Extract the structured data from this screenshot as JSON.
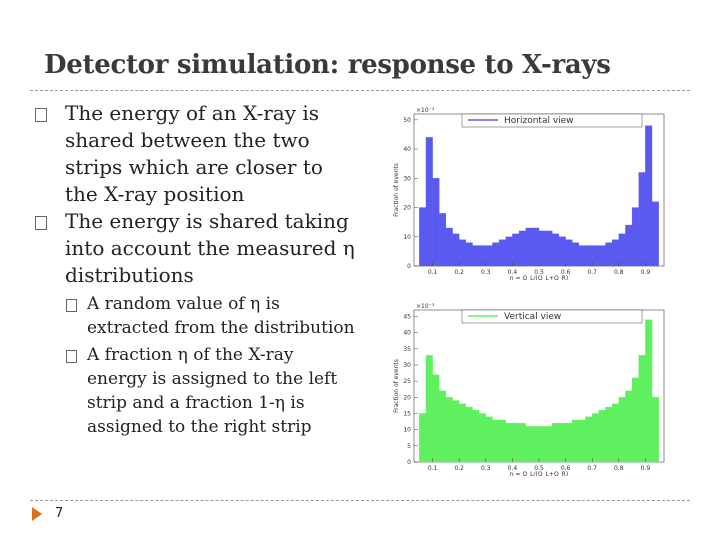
{
  "title": "Detector simulation: response to X-rays",
  "bullets": [
    {
      "text": "The energy of an X-ray is shared between the two strips which are closer to the X-ray position",
      "sub": []
    },
    {
      "text": "The energy is shared taking into account the measured η distributions",
      "sub": [
        "A random value of η is extracted from the distribution",
        "A fraction η of the X-ray energy is assigned to the left strip and a fraction 1-η is assigned to the right strip"
      ]
    }
  ],
  "slide_number": "7",
  "chart_data": [
    {
      "type": "histogram",
      "y_label": "Fraction of events",
      "y_exponent": "×10⁻³",
      "x_label": "η = Q_L/(Q_L+Q_R)",
      "bins": [
        0.05,
        0.075,
        0.1,
        0.125,
        0.15,
        0.175,
        0.2,
        0.225,
        0.25,
        0.275,
        0.3,
        0.325,
        0.35,
        0.375,
        0.4,
        0.425,
        0.45,
        0.475,
        0.5,
        0.525,
        0.55,
        0.575,
        0.6,
        0.625,
        0.65,
        0.675,
        0.7,
        0.725,
        0.75,
        0.775,
        0.8,
        0.825,
        0.85,
        0.875,
        0.9,
        0.925,
        0.95
      ],
      "series": [
        {
          "name": "Horizontal view",
          "color": "#5a5af0",
          "values": [
            20,
            44,
            30,
            18,
            13,
            11,
            9,
            8,
            7,
            7,
            7,
            8,
            9,
            10,
            11,
            12,
            13,
            13,
            12,
            12,
            11,
            10,
            9,
            8,
            7,
            7,
            7,
            7,
            8,
            9,
            11,
            14,
            20,
            32,
            48,
            22
          ]
        }
      ],
      "xlim": [
        0.03,
        0.97
      ],
      "xticks": [
        0.1,
        0.2,
        0.3,
        0.4,
        0.5,
        0.6,
        0.7,
        0.8,
        0.9
      ],
      "ylim": [
        0,
        52
      ],
      "yticks": [
        0,
        10,
        20,
        30,
        40,
        50
      ],
      "legend": "top"
    },
    {
      "type": "histogram",
      "y_label": "Fraction of events",
      "y_exponent": "×10⁻³",
      "x_label": "η = Q_L/(Q_L+Q_R)",
      "bins": [
        0.05,
        0.075,
        0.1,
        0.125,
        0.15,
        0.175,
        0.2,
        0.225,
        0.25,
        0.275,
        0.3,
        0.325,
        0.35,
        0.375,
        0.4,
        0.425,
        0.45,
        0.475,
        0.5,
        0.525,
        0.55,
        0.575,
        0.6,
        0.625,
        0.65,
        0.675,
        0.7,
        0.725,
        0.75,
        0.775,
        0.8,
        0.825,
        0.85,
        0.875,
        0.9,
        0.925,
        0.95
      ],
      "series": [
        {
          "name": "Vertical view",
          "color": "#5ef05e",
          "values": [
            15,
            33,
            27,
            22,
            20,
            19,
            18,
            17,
            16,
            15,
            14,
            13,
            13,
            12,
            12,
            12,
            11,
            11,
            11,
            11,
            12,
            12,
            12,
            13,
            13,
            14,
            15,
            16,
            17,
            18,
            20,
            22,
            26,
            33,
            44,
            20
          ]
        }
      ],
      "xlim": [
        0.03,
        0.97
      ],
      "xticks": [
        0.1,
        0.2,
        0.3,
        0.4,
        0.5,
        0.6,
        0.7,
        0.8,
        0.9
      ],
      "ylim": [
        0,
        47
      ],
      "yticks": [
        0,
        5,
        10,
        15,
        20,
        25,
        30,
        35,
        40,
        45
      ],
      "legend": "top"
    }
  ]
}
